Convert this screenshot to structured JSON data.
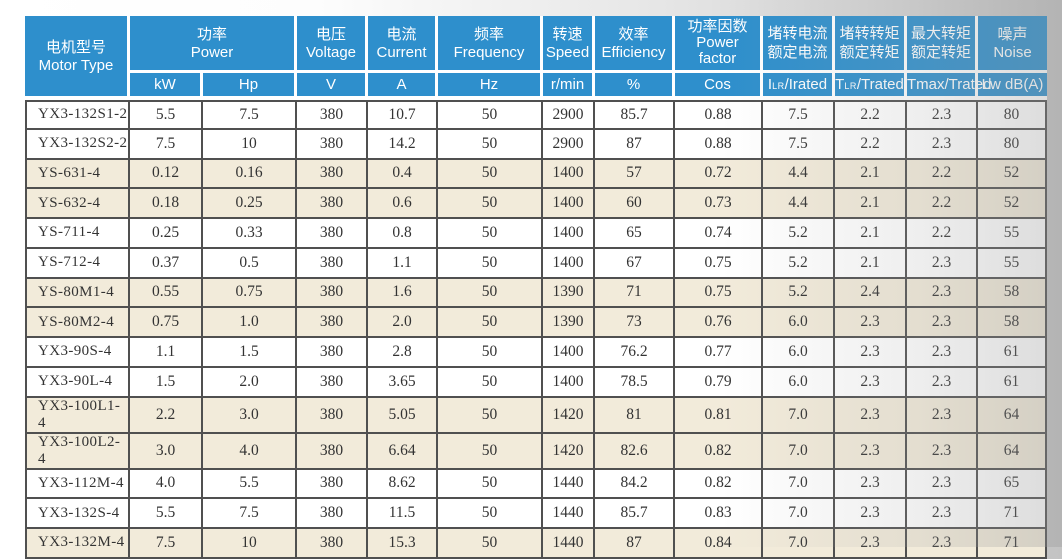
{
  "colors": {
    "header_bg": "#2E8FCC",
    "header_text": "#FFFFFF",
    "shaded_row_bg": "#F2EBDA",
    "grid_line": "#505050",
    "body_text": "#333333"
  },
  "table": {
    "col_ids": [
      "motor_type",
      "power_kw",
      "power_hp",
      "voltage",
      "current",
      "frequency",
      "speed",
      "efficiency",
      "power_factor",
      "locked_rotor_current_ratio",
      "locked_rotor_torque_ratio",
      "max_torque_ratio",
      "noise"
    ],
    "header": {
      "motor": {
        "zh": "电机型号",
        "en": "Motor Type"
      },
      "power": {
        "zh": "功率",
        "en": "Power",
        "unit_kw": "kW",
        "unit_hp": "Hp"
      },
      "voltage": {
        "zh": "电压",
        "en": "Voltage",
        "unit": "V"
      },
      "current": {
        "zh": "电流",
        "en": "Current",
        "unit": "A"
      },
      "frequency": {
        "zh": "频率",
        "en": "Frequency",
        "unit": "Hz"
      },
      "speed": {
        "zh": "转速",
        "en": "Speed",
        "unit": "r/min"
      },
      "efficiency": {
        "zh": "效率",
        "en": "Efficiency",
        "unit": "%"
      },
      "power_factor": {
        "zh": "功率因数",
        "en_line1": "Power",
        "en_line2": "factor",
        "unit": "Cos"
      },
      "locked_rotor_current": {
        "zh_line1": "堵转电流",
        "zh_line2": "额定电流",
        "unit_base": "I",
        "unit_sub": "LR",
        "unit_rest": "/Irated"
      },
      "locked_rotor_torque": {
        "zh_line1": "堵转转矩",
        "zh_line2": "额定转矩",
        "unit_base": "T",
        "unit_sub": "LR",
        "unit_rest": "/Trated"
      },
      "max_torque": {
        "zh_line1": "最大转矩",
        "zh_line2": "额定转矩",
        "unit": "Tmax/Trated"
      },
      "noise": {
        "zh": "噪声",
        "en": "Noise",
        "unit": "Lw dB(A)"
      }
    },
    "rows": [
      {
        "shaded": false,
        "cells": [
          "YX3-132S1-2",
          "5.5",
          "7.5",
          "380",
          "10.7",
          "50",
          "2900",
          "85.7",
          "0.88",
          "7.5",
          "2.2",
          "2.3",
          "80"
        ]
      },
      {
        "shaded": false,
        "cells": [
          "YX3-132S2-2",
          "7.5",
          "10",
          "380",
          "14.2",
          "50",
          "2900",
          "87",
          "0.88",
          "7.5",
          "2.2",
          "2.3",
          "80"
        ]
      },
      {
        "shaded": true,
        "cells": [
          "YS-631-4",
          "0.12",
          "0.16",
          "380",
          "0.4",
          "50",
          "1400",
          "57",
          "0.72",
          "4.4",
          "2.1",
          "2.2",
          "52"
        ]
      },
      {
        "shaded": true,
        "cells": [
          "YS-632-4",
          "0.18",
          "0.25",
          "380",
          "0.6",
          "50",
          "1400",
          "60",
          "0.73",
          "4.4",
          "2.1",
          "2.2",
          "52"
        ]
      },
      {
        "shaded": false,
        "cells": [
          "YS-711-4",
          "0.25",
          "0.33",
          "380",
          "0.8",
          "50",
          "1400",
          "65",
          "0.74",
          "5.2",
          "2.1",
          "2.2",
          "55"
        ]
      },
      {
        "shaded": false,
        "cells": [
          "YS-712-4",
          "0.37",
          "0.5",
          "380",
          "1.1",
          "50",
          "1400",
          "67",
          "0.75",
          "5.2",
          "2.1",
          "2.3",
          "55"
        ]
      },
      {
        "shaded": true,
        "cells": [
          "YS-80M1-4",
          "0.55",
          "0.75",
          "380",
          "1.6",
          "50",
          "1390",
          "71",
          "0.75",
          "5.2",
          "2.4",
          "2.3",
          "58"
        ]
      },
      {
        "shaded": true,
        "cells": [
          "YS-80M2-4",
          "0.75",
          "1.0",
          "380",
          "2.0",
          "50",
          "1390",
          "73",
          "0.76",
          "6.0",
          "2.3",
          "2.3",
          "58"
        ]
      },
      {
        "shaded": false,
        "cells": [
          "YX3-90S-4",
          "1.1",
          "1.5",
          "380",
          "2.8",
          "50",
          "1400",
          "76.2",
          "0.77",
          "6.0",
          "2.3",
          "2.3",
          "61"
        ]
      },
      {
        "shaded": false,
        "cells": [
          "YX3-90L-4",
          "1.5",
          "2.0",
          "380",
          "3.65",
          "50",
          "1400",
          "78.5",
          "0.79",
          "6.0",
          "2.3",
          "2.3",
          "61"
        ]
      },
      {
        "shaded": true,
        "cells": [
          "YX3-100L1-4",
          "2.2",
          "3.0",
          "380",
          "5.05",
          "50",
          "1420",
          "81",
          "0.81",
          "7.0",
          "2.3",
          "2.3",
          "64"
        ]
      },
      {
        "shaded": true,
        "cells": [
          "YX3-100L2-4",
          "3.0",
          "4.0",
          "380",
          "6.64",
          "50",
          "1420",
          "82.6",
          "0.82",
          "7.0",
          "2.3",
          "2.3",
          "64"
        ]
      },
      {
        "shaded": false,
        "cells": [
          "YX3-112M-4",
          "4.0",
          "5.5",
          "380",
          "8.62",
          "50",
          "1440",
          "84.2",
          "0.82",
          "7.0",
          "2.3",
          "2.3",
          "65"
        ]
      },
      {
        "shaded": false,
        "cells": [
          "YX3-132S-4",
          "5.5",
          "7.5",
          "380",
          "11.5",
          "50",
          "1440",
          "85.7",
          "0.83",
          "7.0",
          "2.3",
          "2.3",
          "71"
        ]
      },
      {
        "shaded": true,
        "cells": [
          "YX3-132M-4",
          "7.5",
          "10",
          "380",
          "15.3",
          "50",
          "1440",
          "87",
          "0.84",
          "7.0",
          "2.3",
          "2.3",
          "71"
        ]
      }
    ]
  }
}
